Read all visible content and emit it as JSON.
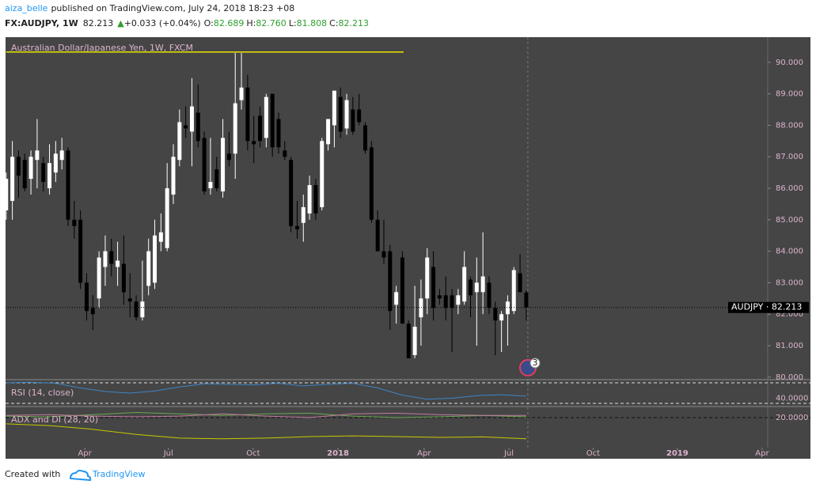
{
  "header": {
    "user": "aiza_belle",
    "published": "published on TradingView.com, July 24, 2018 18:23 +08",
    "symbol": "FX:AUDJPY, 1W",
    "price": "82.213",
    "change": "+0.033 (+0.04%)",
    "ohlc": [
      {
        "label": "O:",
        "value": "82.689"
      },
      {
        "label": "H:",
        "value": "82.760"
      },
      {
        "label": "L:",
        "value": "81.808"
      },
      {
        "label": "C:",
        "value": "82.213"
      }
    ]
  },
  "footer": {
    "created": "Created with",
    "brand": "TradingView"
  },
  "event_badge": "3",
  "chart_data": {
    "type": "candlestick",
    "title": "Australian Dollar/Japanese Yen, 1W, FXCM",
    "up_color": "#ffffff",
    "down_color": "#000000",
    "open": [
      85.3,
      85.6,
      87.0,
      86.9,
      86.3,
      86.9,
      86.8,
      86.0,
      86.5,
      86.9,
      87.2,
      85.0,
      85.0,
      83.0,
      82.2,
      82.5,
      83.5,
      84.0,
      83.5,
      83.6,
      82.5,
      82.4,
      81.9,
      82.9,
      83.0,
      84.3,
      84.1,
      85.8,
      86.9,
      88.0,
      87.8,
      88.4,
      87.6,
      86.0,
      86.6,
      85.9,
      87.1,
      87.1,
      88.8,
      89.2,
      87.5,
      88.3,
      87.6,
      89.0,
      88.2,
      87.2,
      86.9,
      84.8,
      84.9,
      85.2,
      86.1,
      85.4,
      87.4,
      88.0,
      88.9,
      87.9,
      88.5,
      88.5,
      88.0,
      87.3,
      85.0,
      84.0,
      84.0,
      82.3,
      83.8,
      81.7,
      80.7,
      81.9,
      82.5,
      83.5,
      82.6,
      82.6,
      82.6,
      82.3,
      82.4,
      83.1,
      82.7,
      82.7,
      83.0,
      82.2,
      81.8,
      82.0,
      82.1,
      83.3,
      82.689
    ],
    "high": [
      86.5,
      87.5,
      87.2,
      87.1,
      87.2,
      88.2,
      87.0,
      87.4,
      87.5,
      87.6,
      87.3,
      85.6,
      85.3,
      83.3,
      82.6,
      84.0,
      84.5,
      84.4,
      84.3,
      84.5,
      83.3,
      82.6,
      83.7,
      84.4,
      85.0,
      85.2,
      86.8,
      87.4,
      88.5,
      88.6,
      89.5,
      89.3,
      87.8,
      87.6,
      87.0,
      88.2,
      87.8,
      90.3,
      90.3,
      89.6,
      88.3,
      88.6,
      89.0,
      89.0,
      88.4,
      87.5,
      87.0,
      85.6,
      85.8,
      86.4,
      86.3,
      87.6,
      88.2,
      89.1,
      89.2,
      89.0,
      88.9,
      89.0,
      88.1,
      87.5,
      85.3,
      85.0,
      84.2,
      82.9,
      84.0,
      81.8,
      82.9,
      83.1,
      84.1,
      84.0,
      82.8,
      83.2,
      82.8,
      82.8,
      84.0,
      83.2,
      83.8,
      84.6,
      83.2,
      82.4,
      82.1,
      82.6,
      83.5,
      83.9,
      82.76
    ],
    "low": [
      85.0,
      85.0,
      85.7,
      85.9,
      85.8,
      86.0,
      85.9,
      85.8,
      86.2,
      86.6,
      84.8,
      84.4,
      82.8,
      81.8,
      81.5,
      82.2,
      82.9,
      83.2,
      82.9,
      82.3,
      81.9,
      81.8,
      81.8,
      82.6,
      82.8,
      84.0,
      84.0,
      85.5,
      86.7,
      87.6,
      86.7,
      87.3,
      85.8,
      85.8,
      85.9,
      85.7,
      86.7,
      86.3,
      88.5,
      87.2,
      86.8,
      87.3,
      87.3,
      87.0,
      87.1,
      86.9,
      84.6,
      84.4,
      84.3,
      85.0,
      85.0,
      85.3,
      87.2,
      87.3,
      87.6,
      87.7,
      87.7,
      88.0,
      87.1,
      84.9,
      84.0,
      83.6,
      81.5,
      81.7,
      81.7,
      80.6,
      80.6,
      81.0,
      82.0,
      81.8,
      82.3,
      81.8,
      80.8,
      82.0,
      82.3,
      81.9,
      81.0,
      82.0,
      82.0,
      80.7,
      80.8,
      81.0,
      82.0,
      82.7,
      81.808
    ],
    "close": [
      86.3,
      87.0,
      86.4,
      86.0,
      87.0,
      87.2,
      86.2,
      86.8,
      87.1,
      87.2,
      85.0,
      84.8,
      83.0,
      82.1,
      82.0,
      83.8,
      84.0,
      83.6,
      83.7,
      82.7,
      82.4,
      81.9,
      82.4,
      84.0,
      84.5,
      84.6,
      86.0,
      87.0,
      88.1,
      87.9,
      88.6,
      87.5,
      85.9,
      86.2,
      86.0,
      87.6,
      86.9,
      88.7,
      89.2,
      87.5,
      87.4,
      87.5,
      88.9,
      87.3,
      87.3,
      87.0,
      84.8,
      84.7,
      85.4,
      86.1,
      85.2,
      87.5,
      88.2,
      89.1,
      87.8,
      88.8,
      87.8,
      88.1,
      87.2,
      85.0,
      84.0,
      83.8,
      82.1,
      82.7,
      81.7,
      80.6,
      81.6,
      82.5,
      83.8,
      82.2,
      82.5,
      82.2,
      82.2,
      82.6,
      83.5,
      82.6,
      83.0,
      83.2,
      82.2,
      81.8,
      82.0,
      82.4,
      83.4,
      82.7,
      82.213
    ],
    "xlim": [
      -0.1,
      123
    ],
    "xticks": [
      {
        "value": 12.7,
        "label": "Apr"
      },
      {
        "value": 26.2,
        "label": "Jul"
      },
      {
        "value": 39.9,
        "label": "Oct"
      },
      {
        "value": 53.6,
        "label": "2018"
      },
      {
        "value": 67.5,
        "label": "Apr"
      },
      {
        "value": 81.2,
        "label": "Jul"
      },
      {
        "value": 94.8,
        "label": "Oct"
      },
      {
        "value": 108.4,
        "label": "2019"
      },
      {
        "value": 122.1,
        "label": "Apr"
      }
    ],
    "ylim": [
      79.92,
      90.8
    ],
    "yticks": [
      {
        "value": 80,
        "label": "80.000"
      },
      {
        "value": 81,
        "label": "81.000"
      },
      {
        "value": 82,
        "label": "82.000"
      },
      {
        "value": 83,
        "label": "83.000"
      },
      {
        "value": 84,
        "label": "84.000"
      },
      {
        "value": 85,
        "label": "85.000"
      },
      {
        "value": 86,
        "label": "86.000"
      },
      {
        "value": 87,
        "label": "87.000"
      },
      {
        "value": 88,
        "label": "88.000"
      },
      {
        "value": 89,
        "label": "89.000"
      },
      {
        "value": 90,
        "label": "90.000"
      }
    ],
    "trend_line": {
      "value": 90.33,
      "x": [
        0,
        64.2
      ],
      "color": "#e6e600"
    },
    "price_label": {
      "value": 82.213,
      "label": "AUDJPY · 82.213"
    },
    "indicators": [
      {
        "title": "RSI (14, close)",
        "ylim": [
          25.4,
          74.6
        ],
        "yticks": [
          {
            "value": 40,
            "label": "40.0000"
          }
        ],
        "hlines": [
          70,
          30
        ],
        "series": [
          {
            "color": "#3d85c6",
            "x": [
              0,
              4,
              8,
              12,
              16,
              20,
              24,
              28,
              32,
              36,
              40,
              44,
              48,
              52,
              56,
              60,
              64,
              68,
              72,
              76,
              80,
              84
            ],
            "values": [
              70,
              71,
              69,
              60,
              53,
              50,
              54,
              62,
              68,
              67,
              66,
              69,
              64,
              67,
              69,
              60,
              46,
              38,
              40,
              45,
              47,
              44
            ]
          }
        ]
      },
      {
        "title": "ADX and DI (28, 20)",
        "ylim": [
          0,
          27
        ],
        "yticks": [
          {
            "value": 20,
            "label": "20.0000"
          }
        ],
        "hlines": [
          20
        ],
        "series": [
          {
            "color": "#c8c800",
            "x": [
              0,
              7,
              14,
              21,
              28,
              35,
              42,
              49,
              56,
              63,
              70,
              77,
              84
            ],
            "values": [
              15.7,
              14.5,
              12,
              8.5,
              6,
              5.5,
              6,
              7,
              7.5,
              7,
              6.5,
              6.8,
              5.5
            ]
          },
          {
            "color": "#6aa84f",
            "x": [
              0,
              7,
              14,
              21,
              28,
              35,
              42,
              49,
              56,
              63,
              70,
              77,
              84
            ],
            "values": [
              21,
              20.5,
              22,
              23.5,
              22.5,
              21.5,
              22.5,
              23,
              21,
              20,
              20.5,
              21.5,
              20.5
            ]
          },
          {
            "color": "#c27ba0",
            "x": [
              0,
              7,
              14,
              21,
              28,
              35,
              42,
              49,
              56,
              63,
              70,
              77,
              84
            ],
            "values": [
              21.5,
              22,
              21,
              20.5,
              21,
              22.5,
              21,
              20,
              22.5,
              23,
              22,
              21.5,
              21.5
            ]
          }
        ]
      }
    ]
  }
}
